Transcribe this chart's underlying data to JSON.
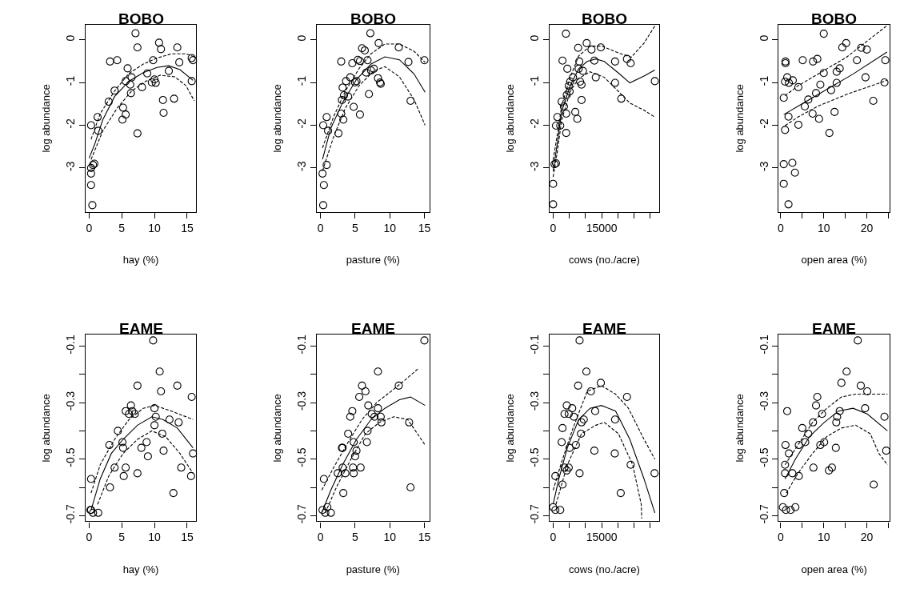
{
  "chart_data": [
    {
      "type": "scatter",
      "title": "BOBO",
      "xlabel": "hay (%)",
      "ylabel": "log abundance",
      "xlim": [
        -0.57,
        16.4
      ],
      "ylim": [
        -4.03,
        0.35
      ],
      "xticks": [
        0,
        5,
        10,
        15
      ],
      "yticks": [
        -3,
        -2,
        -1,
        0
      ],
      "series": [
        {
          "marker": "circle",
          "color": "#000000",
          "x": [
            7.1,
            7.4,
            3.2,
            4.3,
            10.7,
            11.0,
            13.5,
            9.8,
            13.8,
            15.7,
            15.9,
            5.9,
            5.6,
            6.5,
            6.3,
            6.4,
            3.9,
            3.0,
            5.2,
            5.6,
            5.1,
            8.1,
            8.9,
            9.6,
            10.2,
            10.0,
            12.2,
            15.7,
            11.3,
            11.4,
            13.0,
            7.4,
            1.3,
            1.4,
            0.3,
            0.6,
            0.3,
            0.8,
            0.3,
            0.3,
            0.5
          ],
          "values": [
            0.15,
            -0.18,
            -0.51,
            -0.48,
            -0.07,
            -0.22,
            -0.18,
            -0.48,
            -0.53,
            -0.43,
            -0.48,
            -0.67,
            -0.97,
            -0.88,
            -1.05,
            -1.25,
            -1.19,
            -1.45,
            -1.59,
            -1.75,
            -1.87,
            -1.11,
            -0.79,
            -1.0,
            -1.01,
            -0.93,
            -0.73,
            -0.97,
            -1.41,
            -1.71,
            -1.38,
            -2.19,
            -1.81,
            -2.13,
            -2.0,
            -2.93,
            -3.0,
            -2.9,
            -3.13,
            -3.4,
            -3.87
          ]
        },
        {
          "type": "line",
          "line_style": "solid",
          "color": "#000000",
          "x": [
            0,
            0.8,
            2.1,
            3.9,
            6.1,
            8.3,
            10.4,
            12.2,
            13.9,
            15.9
          ],
          "values": [
            -2.77,
            -2.47,
            -1.87,
            -1.33,
            -0.97,
            -0.77,
            -0.65,
            -0.61,
            -0.7,
            -0.95
          ]
        },
        {
          "type": "line",
          "line_style": "dashed",
          "color": "#000000",
          "x": [
            0.3,
            1.7,
            3.9,
            6.1,
            8.3,
            10.4,
            12.6,
            14.8,
            16.1
          ],
          "values": [
            -2.33,
            -1.73,
            -1.2,
            -0.79,
            -0.57,
            -0.43,
            -0.33,
            -0.33,
            -0.4
          ]
        },
        {
          "type": "line",
          "line_style": "dashed",
          "color": "#000000",
          "x": [
            0.3,
            2.1,
            4.3,
            6.5,
            8.7,
            10.9,
            13.1,
            14.8,
            16.1
          ],
          "values": [
            -2.8,
            -2.13,
            -1.6,
            -1.2,
            -0.97,
            -0.83,
            -0.87,
            -1.07,
            -1.43
          ]
        }
      ]
    },
    {
      "type": "scatter",
      "title": "BOBO",
      "xlabel": "pasture (%)",
      "ylabel": "log abundance",
      "xlim": [
        -0.53,
        15.7
      ],
      "ylim": [
        -4.03,
        0.35
      ],
      "xticks": [
        0,
        5,
        10,
        15
      ],
      "yticks": [
        -3,
        -2,
        -1,
        0
      ],
      "series": [
        {
          "marker": "circle",
          "color": "#000000",
          "x": [
            7.2,
            8.4,
            6.0,
            6.4,
            11.3,
            3.0,
            4.6,
            5.4,
            5.7,
            6.8,
            12.7,
            15.0,
            4.3,
            3.7,
            5.0,
            5.2,
            6.6,
            7.3,
            7.7,
            8.3,
            8.7,
            8.6,
            3.2,
            3.4,
            3.1,
            4.0,
            7.0,
            4.8,
            5.7,
            3.0,
            3.3,
            2.6,
            0.9,
            1.1,
            0.4,
            13.0,
            0.9,
            0.3,
            0.5,
            0.4
          ],
          "values": [
            0.15,
            -0.08,
            -0.2,
            -0.25,
            -0.18,
            -0.51,
            -0.55,
            -0.47,
            -0.5,
            -0.48,
            -0.52,
            -0.48,
            -0.88,
            -0.97,
            -1.0,
            -0.97,
            -0.77,
            -0.72,
            -0.68,
            -0.9,
            -1.03,
            -1.0,
            -1.12,
            -1.3,
            -1.41,
            -1.33,
            -1.27,
            -1.57,
            -1.75,
            -1.73,
            -1.87,
            -2.19,
            -1.81,
            -2.13,
            -2.0,
            -1.43,
            -2.93,
            -3.13,
            -3.4,
            -3.87
          ]
        },
        {
          "type": "line",
          "line_style": "solid",
          "color": "#000000",
          "x": [
            0.3,
            1.5,
            3.2,
            5.2,
            7.3,
            9.3,
            11.4,
            13.5,
            15.1
          ],
          "values": [
            -2.8,
            -2.07,
            -1.47,
            -0.93,
            -0.57,
            -0.4,
            -0.47,
            -0.8,
            -1.23
          ]
        },
        {
          "type": "line",
          "line_style": "dashed",
          "color": "#000000",
          "x": [
            0.3,
            1.9,
            3.6,
            5.6,
            7.3,
            9.3,
            11.4,
            13.5,
            15.1
          ],
          "values": [
            -2.53,
            -1.8,
            -1.2,
            -0.67,
            -0.33,
            -0.1,
            -0.1,
            -0.27,
            -0.53
          ]
        },
        {
          "type": "line",
          "line_style": "dashed",
          "color": "#000000",
          "x": [
            0.3,
            1.9,
            3.6,
            5.6,
            7.7,
            9.3,
            11.4,
            13.5,
            15.1
          ],
          "values": [
            -3.07,
            -2.27,
            -1.6,
            -1.07,
            -0.73,
            -0.63,
            -0.87,
            -1.4,
            -2.0
          ]
        }
      ]
    },
    {
      "type": "scatter",
      "title": "BOBO",
      "xlabel": "cows (no./acre)",
      "ylabel": "log abundance",
      "xlim": [
        -1050,
        32700
      ],
      "ylim": [
        -4.03,
        0.35
      ],
      "xticks": [
        0,
        {
          "value": 5000,
          "label": null
        },
        {
          "value": 10000,
          "label": null
        },
        15000,
        {
          "value": 20000,
          "label": null
        },
        {
          "value": 25000,
          "label": null
        },
        {
          "value": 30000,
          "label": null
        }
      ],
      "yticks": [
        -3,
        -2,
        -1,
        0
      ],
      "series": [
        {
          "marker": "circle",
          "color": "#000000",
          "x": [
            3950,
            2890,
            4390,
            7720,
            10350,
            11840,
            14730,
            12720,
            8070,
            7890,
            9210,
            13160,
            19120,
            22800,
            23940,
            19120,
            8770,
            8330,
            6140,
            5260,
            4820,
            5090,
            4210,
            8770,
            2630,
            3330,
            4030,
            6840,
            7460,
            1320,
            880,
            2190,
            4030,
            21050,
            31400,
            440,
            880,
            0,
            0
          ],
          "values": [
            0.14,
            -0.49,
            -0.68,
            -0.19,
            -0.08,
            -0.23,
            -0.18,
            -0.49,
            -0.51,
            -0.68,
            -0.73,
            -0.88,
            -0.51,
            -0.45,
            -0.55,
            -1.01,
            -1.05,
            -0.98,
            -0.88,
            -0.98,
            -1.08,
            -1.21,
            -1.29,
            -1.41,
            -1.45,
            -1.56,
            -1.73,
            -1.69,
            -1.85,
            -1.81,
            -2.01,
            -2.01,
            -2.18,
            -1.38,
            -0.97,
            -2.91,
            -2.89,
            -3.37,
            -3.85
          ]
        },
        {
          "type": "line",
          "line_style": "solid",
          "color": "#000000",
          "x": [
            0,
            1320,
            2630,
            5260,
            7890,
            10520,
            13160,
            15790,
            20170,
            23680,
            28070,
            31400
          ],
          "values": [
            -3.07,
            -2.41,
            -1.68,
            -1.08,
            -0.68,
            -0.51,
            -0.45,
            -0.51,
            -0.78,
            -1.01,
            -0.85,
            -0.71
          ]
        },
        {
          "type": "line",
          "line_style": "dashed",
          "color": "#000000",
          "x": [
            0,
            1320,
            2630,
            5260,
            7890,
            11400,
            14910,
            20170,
            24120,
            28070,
            31400
          ],
          "values": [
            -2.81,
            -2.21,
            -1.55,
            -0.88,
            -0.38,
            -0.15,
            -0.15,
            -0.31,
            -0.41,
            -0.08,
            0.32
          ]
        },
        {
          "type": "line",
          "line_style": "dashed",
          "color": "#000000",
          "x": [
            0,
            1320,
            2630,
            5260,
            7890,
            11400,
            15790,
            20170,
            23680,
            28070,
            31400
          ],
          "values": [
            -3.21,
            -2.61,
            -1.88,
            -1.21,
            -0.91,
            -0.75,
            -0.88,
            -1.21,
            -1.48,
            -1.65,
            -1.81
          ]
        }
      ]
    },
    {
      "type": "scatter",
      "title": "BOBO",
      "xlabel": "open area (%)",
      "ylabel": "log abundance",
      "xlim": [
        -0.47,
        25.3
      ],
      "ylim": [
        -4.03,
        0.35
      ],
      "xticks": [
        0,
        {
          "value": 5,
          "label": null
        },
        10,
        {
          "value": 15,
          "label": null
        },
        20,
        {
          "value": 25,
          "label": null
        }
      ],
      "yticks": [
        -3,
        -2,
        -1,
        0
      ],
      "series": [
        {
          "marker": "circle",
          "color": "#000000",
          "x": [
            10,
            15.2,
            14.3,
            18.7,
            20.0,
            1.1,
            1.1,
            5.1,
            7.5,
            8.5,
            17.7,
            24.3,
            10,
            13,
            13.7,
            1.5,
            1,
            1.9,
            2.8,
            4.1,
            9.2,
            13,
            19.7,
            24.1,
            11.7,
            8.2,
            6.4,
            0.7,
            5.6,
            7.4,
            8.9,
            12.5,
            21.5,
            1.8,
            1,
            4.1,
            11.3,
            0.7,
            2.7,
            3.3,
            0.7,
            1.8
          ],
          "values": [
            0.14,
            -0.08,
            -0.18,
            -0.19,
            -0.23,
            -0.51,
            -0.55,
            -0.48,
            -0.51,
            -0.45,
            -0.48,
            -0.48,
            -0.78,
            -0.75,
            -0.67,
            -0.88,
            -0.98,
            -1.01,
            -0.95,
            -1.11,
            -1.05,
            -1.01,
            -0.88,
            -1.0,
            -1.18,
            -1.25,
            -1.4,
            -1.36,
            -1.56,
            -1.73,
            -1.85,
            -1.69,
            -1.43,
            -1.8,
            -2.11,
            -1.99,
            -2.18,
            -2.91,
            -2.88,
            -3.11,
            -3.37,
            -3.85
          ]
        },
        {
          "type": "line",
          "line_style": "solid",
          "color": "#000000",
          "x": [
            0.7,
            8.7,
            16.7,
            24.7
          ],
          "values": [
            -1.75,
            -1.28,
            -0.81,
            -0.29
          ]
        },
        {
          "type": "line",
          "line_style": "dashed",
          "color": "#000000",
          "x": [
            1,
            4,
            15.3,
            24.7
          ],
          "values": [
            -1.31,
            -1.08,
            -0.41,
            0.33
          ]
        },
        {
          "type": "line",
          "line_style": "dashed",
          "color": "#000000",
          "x": [
            1,
            4,
            8.7,
            15.3,
            24.7
          ],
          "values": [
            -2.01,
            -1.81,
            -1.55,
            -1.28,
            -0.95
          ]
        }
      ]
    },
    {
      "type": "scatter",
      "title": "EAME",
      "xlabel": "hay (%)",
      "ylabel": "log abundance",
      "xlim": [
        -0.57,
        16.4
      ],
      "ylim": [
        -0.72,
        -0.06
      ],
      "xticks": [
        0,
        5,
        10,
        15
      ],
      "yticks": [
        -0.7,
        {
          "value": -0.6,
          "label": null
        },
        -0.5,
        {
          "value": -0.4,
          "label": null
        },
        -0.3,
        {
          "value": -0.2,
          "label": null
        },
        -0.1
      ],
      "series": [
        {
          "marker": "circle",
          "color": "#000000",
          "x": [
            9.8,
            10.8,
            7.4,
            13.5,
            11.0,
            15.7,
            6.4,
            5.6,
            6.1,
            6.6,
            7.0,
            10.0,
            10.2,
            12.3,
            13.7,
            10.0,
            11.2,
            4.4,
            5.1,
            5.2,
            3.1,
            8.8,
            8.0,
            9.0,
            11.4,
            15.9,
            3.9,
            5.6,
            5.3,
            7.4,
            14.1,
            15.6,
            0.3,
            3.2,
            12.9,
            0.3,
            0.6,
            1.4,
            0.2
          ],
          "values": [
            -0.08,
            -0.19,
            -0.24,
            -0.24,
            -0.26,
            -0.28,
            -0.31,
            -0.33,
            -0.34,
            -0.33,
            -0.34,
            -0.32,
            -0.35,
            -0.36,
            -0.37,
            -0.38,
            -0.41,
            -0.4,
            -0.44,
            -0.46,
            -0.45,
            -0.44,
            -0.46,
            -0.49,
            -0.47,
            -0.48,
            -0.53,
            -0.53,
            -0.56,
            -0.55,
            -0.53,
            -0.56,
            -0.57,
            -0.6,
            -0.62,
            -0.68,
            -0.69,
            -0.69,
            -0.68
          ]
        },
        {
          "type": "line",
          "line_style": "solid",
          "color": "#000000",
          "x": [
            0.3,
            1.7,
            3.4,
            5.2,
            7.4,
            9.6,
            11.3,
            13.5,
            15.9
          ],
          "values": [
            -0.68,
            -0.57,
            -0.48,
            -0.43,
            -0.38,
            -0.35,
            -0.36,
            -0.39,
            -0.46
          ]
        },
        {
          "type": "line",
          "line_style": "dashed",
          "color": "#000000",
          "x": [
            0.3,
            1.7,
            3.9,
            6.1,
            8.3,
            10.0,
            12.6,
            15.9
          ],
          "values": [
            -0.62,
            -0.52,
            -0.43,
            -0.36,
            -0.32,
            -0.31,
            -0.33,
            -0.36
          ]
        },
        {
          "type": "line",
          "line_style": "dashed",
          "color": "#000000",
          "x": [
            1.3,
            3.0,
            5.2,
            7.4,
            9.6,
            11.7,
            13.9,
            15.9
          ],
          "values": [
            -0.66,
            -0.56,
            -0.48,
            -0.43,
            -0.4,
            -0.42,
            -0.48,
            -0.55
          ]
        }
      ]
    },
    {
      "type": "scatter",
      "title": "EAME",
      "xlabel": "pasture (%)",
      "ylabel": "log abundance",
      "xlim": [
        -0.53,
        15.7
      ],
      "ylim": [
        -0.72,
        -0.06
      ],
      "xticks": [
        0,
        5,
        10,
        15
      ],
      "yticks": [
        -0.7,
        {
          "value": -0.6,
          "label": null
        },
        -0.5,
        {
          "value": -0.4,
          "label": null
        },
        -0.3,
        {
          "value": -0.2,
          "label": null
        },
        -0.1
      ],
      "series": [
        {
          "marker": "circle",
          "color": "#000000",
          "x": [
            15.0,
            8.3,
            11.3,
            6.0,
            6.5,
            5.6,
            6.9,
            8.3,
            4.6,
            4.3,
            7.4,
            7.8,
            8.7,
            8.8,
            12.8,
            6.8,
            4.0,
            6.7,
            4.8,
            3.2,
            3.1,
            5.2,
            5.0,
            3.2,
            4.7,
            5.8,
            2.5,
            3.6,
            4.8,
            0.5,
            3.3,
            13.0,
            0.3,
            1.0,
            1.5,
            0.7
          ],
          "values": [
            -0.08,
            -0.19,
            -0.24,
            -0.24,
            -0.26,
            -0.28,
            -0.31,
            -0.32,
            -0.33,
            -0.35,
            -0.34,
            -0.35,
            -0.35,
            -0.37,
            -0.37,
            -0.4,
            -0.41,
            -0.44,
            -0.44,
            -0.46,
            -0.46,
            -0.47,
            -0.49,
            -0.53,
            -0.53,
            -0.53,
            -0.55,
            -0.55,
            -0.55,
            -0.57,
            -0.62,
            -0.6,
            -0.68,
            -0.67,
            -0.69,
            -0.69
          ]
        },
        {
          "type": "line",
          "line_style": "solid",
          "color": "#000000",
          "x": [
            0.2,
            1.5,
            3.2,
            5.2,
            7.3,
            9.3,
            11.4,
            13.0,
            15.1
          ],
          "values": [
            -0.69,
            -0.61,
            -0.52,
            -0.43,
            -0.36,
            -0.32,
            -0.29,
            -0.28,
            -0.31
          ]
        },
        {
          "type": "line",
          "line_style": "dashed",
          "color": "#000000",
          "x": [
            0.2,
            1.9,
            4.0,
            6.0,
            8.1,
            10.2,
            12.2,
            14.1
          ],
          "values": [
            -0.61,
            -0.53,
            -0.44,
            -0.36,
            -0.3,
            -0.26,
            -0.22,
            -0.18
          ]
        },
        {
          "type": "line",
          "line_style": "dashed",
          "color": "#000000",
          "x": [
            0.7,
            2.3,
            4.4,
            6.5,
            8.5,
            10.6,
            12.6,
            15.1
          ],
          "values": [
            -0.69,
            -0.6,
            -0.5,
            -0.41,
            -0.37,
            -0.35,
            -0.36,
            -0.45
          ]
        }
      ]
    },
    {
      "type": "scatter",
      "title": "EAME",
      "xlabel": "cows (no./acre)",
      "ylabel": "log abundance",
      "xlim": [
        -1050,
        32700
      ],
      "ylim": [
        -0.72,
        -0.06
      ],
      "xticks": [
        0,
        {
          "value": 5000,
          "label": null
        },
        {
          "value": 10000,
          "label": null
        },
        15000,
        {
          "value": 20000,
          "label": null
        },
        {
          "value": 25000,
          "label": null
        },
        {
          "value": 30000,
          "label": null
        }
      ],
      "yticks": [
        -0.7,
        {
          "value": -0.6,
          "label": null
        },
        -0.5,
        {
          "value": -0.4,
          "label": null
        },
        -0.3,
        {
          "value": -0.2,
          "label": null
        },
        -0.1
      ],
      "series": [
        {
          "marker": "circle",
          "color": "#000000",
          "x": [
            8160,
            10260,
            7720,
            14730,
            11660,
            22800,
            4210,
            5880,
            3510,
            4820,
            6400,
            12980,
            9470,
            19120,
            8770,
            8600,
            2890,
            2630,
            5090,
            7020,
            12720,
            19030,
            3510,
            4820,
            4210,
            8160,
            23940,
            31310,
            700,
            2890,
            20870,
            0,
            700,
            2190
          ],
          "values": [
            -0.08,
            -0.19,
            -0.24,
            -0.23,
            -0.26,
            -0.28,
            -0.31,
            -0.32,
            -0.34,
            -0.34,
            -0.35,
            -0.33,
            -0.36,
            -0.36,
            -0.37,
            -0.41,
            -0.39,
            -0.44,
            -0.46,
            -0.45,
            -0.47,
            -0.48,
            -0.53,
            -0.53,
            -0.54,
            -0.55,
            -0.52,
            -0.55,
            -0.56,
            -0.59,
            -0.62,
            -0.67,
            -0.68,
            -0.68
          ]
        },
        {
          "type": "line",
          "line_style": "solid",
          "color": "#000000",
          "x": [
            0,
            1750,
            4380,
            7890,
            11400,
            14910,
            19290,
            23680,
            28070,
            31400
          ],
          "values": [
            -0.66,
            -0.57,
            -0.46,
            -0.36,
            -0.32,
            -0.31,
            -0.33,
            -0.43,
            -0.57,
            -0.69
          ]
        },
        {
          "type": "line",
          "line_style": "dashed",
          "color": "#000000",
          "x": [
            0,
            2630,
            6140,
            10520,
            14910,
            19290,
            23240,
            28070,
            31400
          ],
          "values": [
            -0.61,
            -0.51,
            -0.39,
            -0.26,
            -0.24,
            -0.27,
            -0.32,
            -0.43,
            -0.5
          ]
        },
        {
          "type": "line",
          "line_style": "dashed",
          "color": "#000000",
          "x": [
            880,
            4380,
            8770,
            13160,
            15790,
            20170,
            24560,
            27200,
            27360
          ],
          "values": [
            -0.66,
            -0.52,
            -0.41,
            -0.38,
            -0.37,
            -0.41,
            -0.52,
            -0.66,
            -0.71
          ]
        }
      ]
    },
    {
      "type": "scatter",
      "title": "EAME",
      "xlabel": "open area (%)",
      "ylabel": "log abundance",
      "xlim": [
        -0.47,
        25.3
      ],
      "ylim": [
        -0.72,
        -0.06
      ],
      "xticks": [
        0,
        {
          "value": 5,
          "label": null
        },
        10,
        {
          "value": 15,
          "label": null
        },
        20,
        {
          "value": 25,
          "label": null
        }
      ],
      "yticks": [
        -0.7,
        {
          "value": -0.6,
          "label": null
        },
        -0.5,
        {
          "value": -0.4,
          "label": null
        },
        -0.3,
        {
          "value": -0.2,
          "label": null
        },
        -0.1
      ],
      "series": [
        {
          "marker": "circle",
          "color": "#000000",
          "x": [
            17.9,
            15.3,
            14.1,
            18.6,
            20.1,
            8.5,
            8.2,
            9.6,
            1.5,
            13.7,
            13.1,
            12.9,
            7.5,
            19.6,
            24.1,
            5.0,
            6.4,
            5.7,
            4.2,
            10.1,
            9.2,
            12.8,
            1.1,
            1.9,
            24.5,
            1.0,
            7.6,
            11.9,
            11.2,
            1.0,
            2.7,
            4.2,
            21.6,
            0.8,
            0.5,
            1.2,
            2.3,
            3.4
          ],
          "values": [
            -0.08,
            -0.19,
            -0.23,
            -0.24,
            -0.26,
            -0.28,
            -0.31,
            -0.34,
            -0.33,
            -0.33,
            -0.35,
            -0.37,
            -0.37,
            -0.32,
            -0.35,
            -0.39,
            -0.41,
            -0.44,
            -0.45,
            -0.44,
            -0.45,
            -0.46,
            -0.45,
            -0.48,
            -0.47,
            -0.52,
            -0.53,
            -0.53,
            -0.54,
            -0.55,
            -0.55,
            -0.56,
            -0.59,
            -0.62,
            -0.67,
            -0.68,
            -0.68,
            -0.67
          ]
        },
        {
          "type": "line",
          "line_style": "solid",
          "color": "#000000",
          "x": [
            1,
            3.4,
            6.7,
            10.1,
            13.4,
            16.8,
            20.1,
            24.8
          ],
          "values": [
            -0.57,
            -0.5,
            -0.42,
            -0.37,
            -0.33,
            -0.32,
            -0.34,
            -0.4
          ]
        },
        {
          "type": "line",
          "line_style": "dashed",
          "color": "#000000",
          "x": [
            1,
            4,
            7.4,
            10.7,
            14.1,
            17.4,
            20.8,
            24.8
          ],
          "values": [
            -0.52,
            -0.45,
            -0.37,
            -0.32,
            -0.28,
            -0.27,
            -0.27,
            -0.27
          ]
        },
        {
          "type": "line",
          "line_style": "dashed",
          "color": "#000000",
          "x": [
            1.3,
            4,
            7.4,
            10.7,
            14.1,
            17.4,
            20.8,
            22.8,
            24.8
          ],
          "values": [
            -0.62,
            -0.55,
            -0.48,
            -0.42,
            -0.39,
            -0.38,
            -0.41,
            -0.48,
            -0.52
          ]
        }
      ]
    }
  ]
}
